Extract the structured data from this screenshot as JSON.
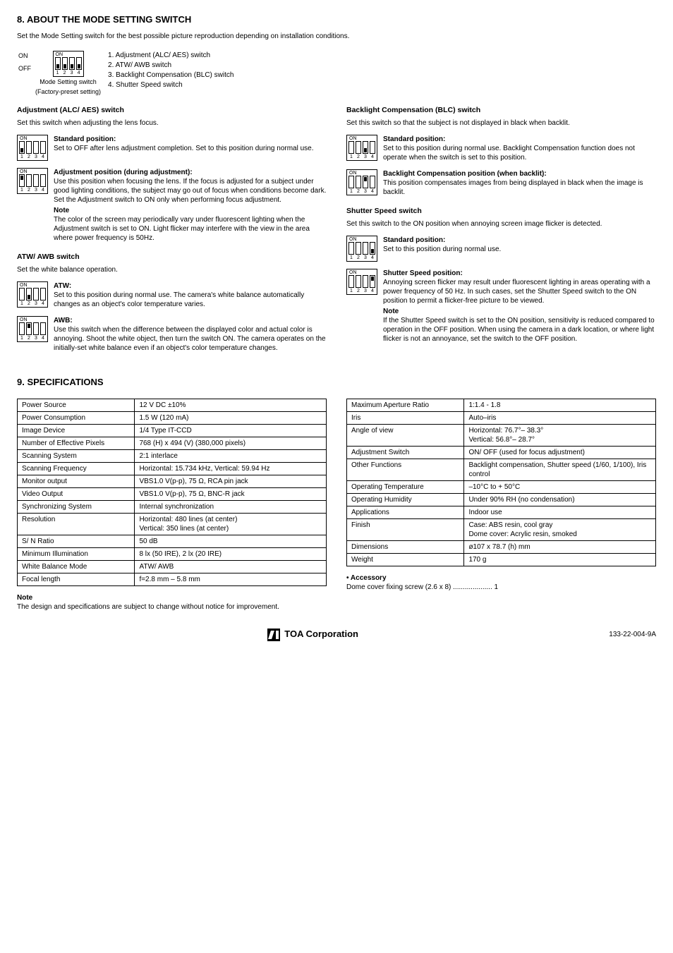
{
  "section8": {
    "title": "8. ABOUT THE MODE SETTING SWITCH",
    "intro": "Set the Mode Setting switch for the best possible picture reproduction depending on installation conditions.",
    "side_on": "ON",
    "side_off": "OFF",
    "caption1": "Mode Setting switch",
    "caption2": "(Factory-preset setting)",
    "legend": {
      "l1": "1. Adjustment (ALC/ AES) switch",
      "l2": "2. ATW/ AWB switch",
      "l3": "3. Backlight Compensation (BLC) switch",
      "l4": "4. Shutter Speed switch"
    }
  },
  "left": {
    "adj_title": "Adjustment (ALC/ AES) switch",
    "adj_intro": "Set this switch when adjusting the lens focus.",
    "std_head": "Standard position:",
    "std_body": "Set to OFF after lens adjustment completion. Set to this position during normal use.",
    "adjpos_head": "Adjustment position (during adjustment):",
    "adjpos_body": "Use this position when focusing the lens. If the focus is adjusted for a subject under good lighting conditions, the subject may go out of focus when conditions become dark. Set the Adjustment switch to ON only when performing focus adjustment.",
    "note_head": "Note",
    "note_body": "The color of the screen may periodically vary under fluorescent lighting when the Adjustment switch is set to ON. Light flicker may interfere with the view in the area where power frequency is 50Hz.",
    "atw_title": "ATW/ AWB switch",
    "atw_intro": "Set the white balance operation.",
    "atw_head": "ATW:",
    "atw_body": "Set to this position during normal use. The camera's white balance automatically changes as an object's color temperature varies.",
    "awb_head": "AWB:",
    "awb_body": "Use this switch when the difference between the displayed color and actual color is annoying. Shoot the white object, then turn the switch ON. The camera operates on the initially-set white balance even if an object's color temperature changes."
  },
  "right": {
    "blc_title": "Backlight Compensation (BLC) switch",
    "blc_intro": "Set this switch so that the subject is not displayed in black when backlit.",
    "blc_std_head": "Standard position:",
    "blc_std_body": "Set to this position during normal use. Backlight Compensation function does not operate when the switch is set to this position.",
    "blc_on_head": "Backlight Compensation position (when backlit):",
    "blc_on_body": "This position compensates images from being displayed in black when the image is backlit.",
    "ss_title": "Shutter Speed switch",
    "ss_intro": "Set this switch to the ON position when annoying screen image flicker is detected.",
    "ss_std_head": "Standard position:",
    "ss_std_body": "Set to this position during normal use.",
    "ss_pos_head": "Shutter Speed position:",
    "ss_pos_body": "Annoying screen flicker may result under fluorescent lighting in areas operating with a power frequency of 50 Hz. In such cases, set the Shutter Speed switch to the ON position to permit a flicker-free picture to be viewed.",
    "ss_note_head": "Note",
    "ss_note_body": "If the Shutter Speed switch is set to the ON position, sensitivity is reduced compared to operation in the OFF position. When using the camera in a dark location, or where light flicker is not an annoyance, set the switch to the OFF position."
  },
  "section9": {
    "title": "9. SPECIFICATIONS",
    "table_left": [
      [
        "Power Source",
        "12 V DC ±10%"
      ],
      [
        "Power Consumption",
        "1.5 W (120 mA)"
      ],
      [
        "Image Device",
        "1/4 Type IT-CCD"
      ],
      [
        "Number of Effective Pixels",
        "768 (H) x 494 (V) (380,000 pixels)"
      ],
      [
        "Scanning System",
        "2:1 interlace"
      ],
      [
        "Scanning Frequency",
        "Horizontal: 15.734 kHz, Vertical: 59.94 Hz"
      ],
      [
        "Monitor output",
        "VBS1.0 V(p-p), 75 Ω, RCA pin jack"
      ],
      [
        "Video Output",
        "VBS1.0 V(p-p), 75 Ω, BNC-R jack"
      ],
      [
        "Synchronizing System",
        "Internal synchronization"
      ],
      [
        "Resolution",
        "Horizontal: 480 lines (at center)\nVertical:    350 lines (at center)"
      ],
      [
        "S/ N Ratio",
        "50 dB"
      ],
      [
        "Minimum Illumination",
        "8 lx (50 IRE), 2 lx (20 IRE)"
      ],
      [
        "White Balance Mode",
        "ATW/ AWB"
      ],
      [
        "Focal length",
        "f=2.8 mm – 5.8 mm"
      ]
    ],
    "table_right": [
      [
        "Maximum Aperture Ratio",
        "1:1.4 - 1.8"
      ],
      [
        "Iris",
        "Auto–iris"
      ],
      [
        "Angle of view",
        "Horizontal: 76.7°– 38.3°\nVertical:    56.8°– 28.7°"
      ],
      [
        "Adjustment Switch",
        "ON/ OFF (used for focus adjustment)"
      ],
      [
        "Other Functions",
        "Backlight compensation, Shutter speed (1/60, 1/100), Iris control"
      ],
      [
        "Operating Temperature",
        "–10°C to + 50°C"
      ],
      [
        "Operating Humidity",
        "Under 90% RH (no condensation)"
      ],
      [
        "Applications",
        "Indoor use"
      ],
      [
        "Finish",
        "Case: ABS resin, cool gray\nDome cover: Acrylic resin, smoked"
      ],
      [
        "Dimensions",
        "ø107 x 78.7 (h) mm"
      ],
      [
        "Weight",
        "170 g"
      ]
    ],
    "accessory_head": "• Accessory",
    "accessory_body": "Dome cover fixing screw (2.6 x 8)  .................... 1",
    "note_head": "Note",
    "note_body": "The design and specifications are subject to change without notice for improvement."
  },
  "footer": {
    "logo_text": "TOA Corporation",
    "docnum": "133-22-004-9A"
  },
  "dip": {
    "on_label": "ON",
    "nums": [
      "1",
      "2",
      "3",
      "4"
    ]
  }
}
